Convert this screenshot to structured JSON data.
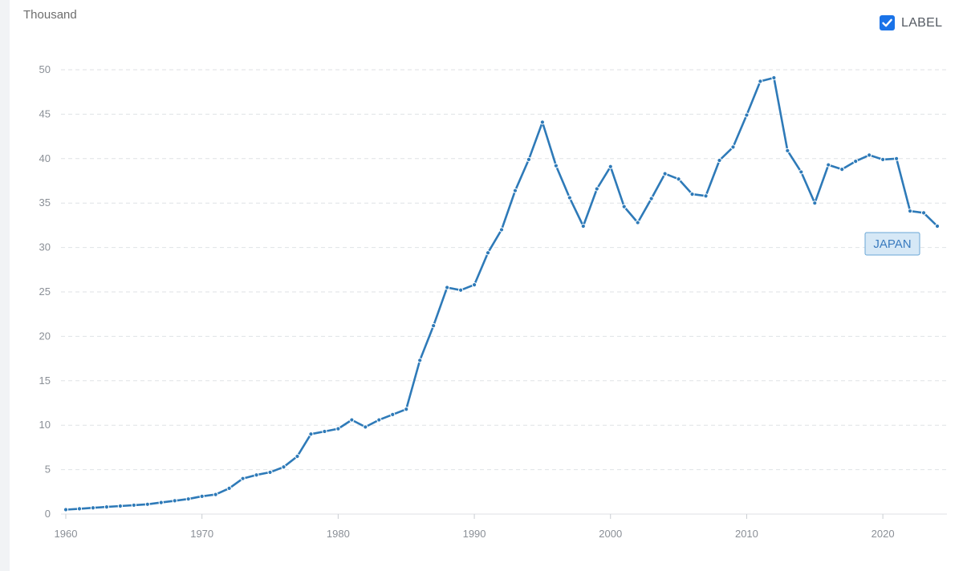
{
  "header": {
    "unit_label": "Thousand",
    "toggle_label": "LABEL",
    "toggle_checked": true
  },
  "chart_data": {
    "type": "line",
    "title": "",
    "xlabel": "",
    "ylabel": "Thousand",
    "xlim": [
      1960,
      2024
    ],
    "ylim": [
      0,
      50
    ],
    "y_ticks": [
      0,
      5,
      10,
      15,
      20,
      25,
      30,
      35,
      40,
      45,
      50
    ],
    "x_ticks": [
      1960,
      1970,
      1980,
      1990,
      2000,
      2010,
      2020
    ],
    "grid": true,
    "line_color": "#2e7ab8",
    "series": [
      {
        "name": "JAPAN",
        "x": [
          1960,
          1961,
          1962,
          1963,
          1964,
          1965,
          1966,
          1967,
          1968,
          1969,
          1970,
          1971,
          1972,
          1973,
          1974,
          1975,
          1976,
          1977,
          1978,
          1979,
          1980,
          1981,
          1982,
          1983,
          1984,
          1985,
          1986,
          1987,
          1988,
          1989,
          1990,
          1991,
          1992,
          1993,
          1994,
          1995,
          1996,
          1997,
          1998,
          1999,
          2000,
          2001,
          2002,
          2003,
          2004,
          2005,
          2006,
          2007,
          2008,
          2009,
          2010,
          2011,
          2012,
          2013,
          2014,
          2015,
          2016,
          2017,
          2018,
          2019,
          2020,
          2021,
          2022,
          2023,
          2024
        ],
        "values": [
          0.5,
          0.6,
          0.7,
          0.8,
          0.9,
          1.0,
          1.1,
          1.3,
          1.5,
          1.7,
          2.0,
          2.2,
          2.9,
          4.0,
          4.4,
          4.7,
          5.3,
          6.5,
          9.0,
          9.3,
          9.6,
          10.6,
          9.8,
          10.6,
          11.2,
          11.8,
          17.3,
          21.2,
          25.5,
          25.2,
          25.8,
          29.4,
          32.0,
          36.4,
          39.9,
          44.1,
          39.2,
          35.6,
          32.4,
          36.6,
          39.1,
          34.6,
          32.8,
          35.5,
          38.3,
          37.7,
          36.0,
          35.8,
          39.8,
          41.3,
          44.9,
          48.7,
          49.1,
          40.9,
          38.5,
          35.0,
          39.3,
          38.8,
          39.7,
          40.4,
          39.9,
          40.0,
          34.1,
          33.9,
          32.4
        ]
      }
    ]
  }
}
